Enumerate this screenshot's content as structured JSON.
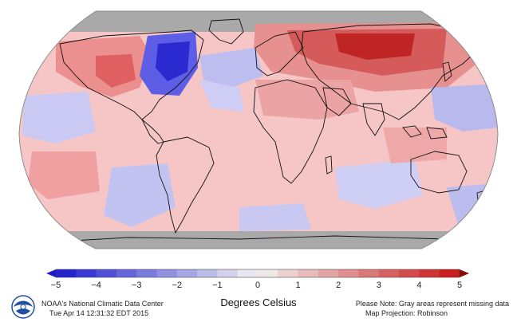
{
  "legend": {
    "units": "Degrees Celsius",
    "min": -5,
    "max": 5,
    "tick_labels": [
      "−5",
      "−4",
      "−3",
      "−2",
      "−1",
      "0",
      "1",
      "2",
      "3",
      "4",
      "5"
    ],
    "color_cold": "#1a1acc",
    "color_neutral": "#f2f2f2",
    "color_warm": "#c81414"
  },
  "footer": {
    "organization": "NOAA's National Climatic Data Center",
    "timestamp": "Tue Apr 14 12:31:32 EDT 2015",
    "note": "Please Note: Gray areas represent missing data",
    "projection": "Map Projection: Robinson"
  },
  "map": {
    "missing_color": "#a9a9a9",
    "ocean_border_color": "#8c8c8c"
  },
  "logo": {
    "icon": "noaa-logo-icon",
    "color": "#1f4fa0"
  }
}
